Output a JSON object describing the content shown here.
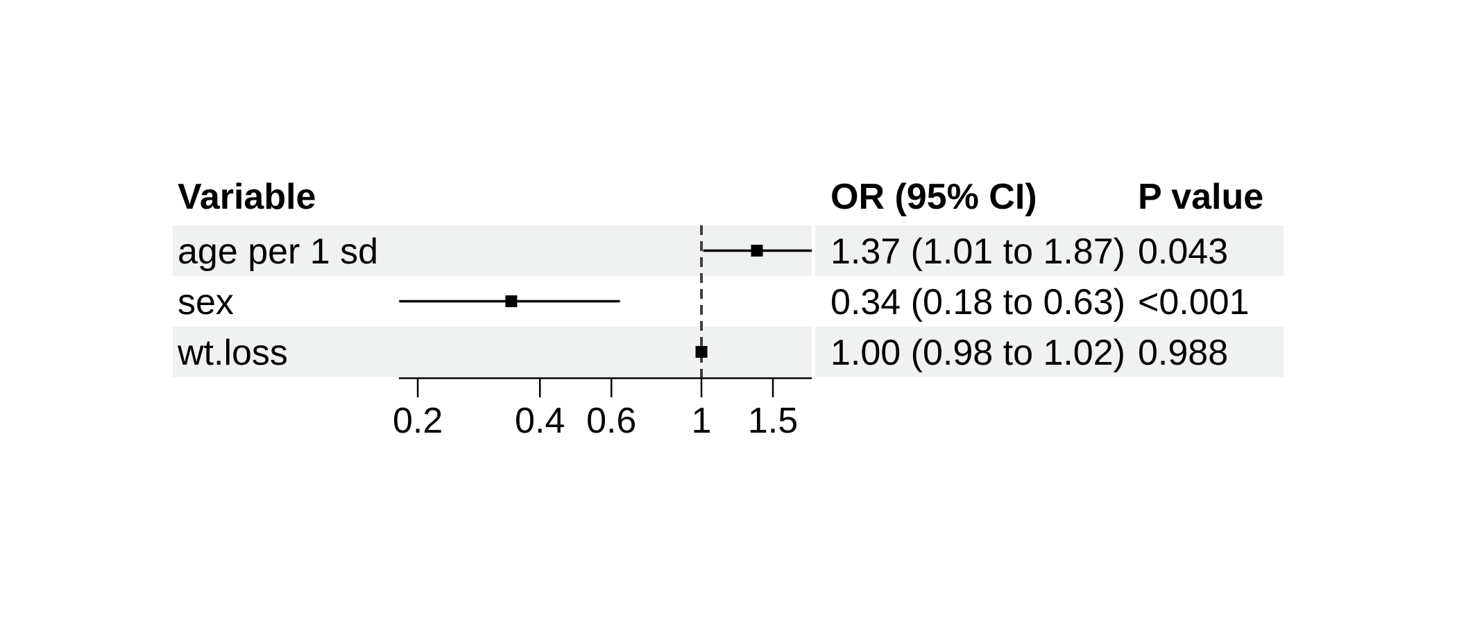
{
  "table": {
    "headers": {
      "variable": "Variable",
      "or_ci": "OR (95% CI)",
      "p_value": "P value"
    },
    "rows": [
      {
        "variable": "age per 1 sd",
        "or_ci": "1.37 (1.01 to 1.87)",
        "p_value": "0.043"
      },
      {
        "variable": "sex",
        "or_ci": "0.34 (0.18 to 0.63)",
        "p_value": "<0.001"
      },
      {
        "variable": "wt.loss",
        "or_ci": "1.00 (0.98 to 1.02)",
        "p_value": "0.988"
      }
    ]
  },
  "chart_data": {
    "type": "forest",
    "x_scale": "log10",
    "xlim": [
      0.18,
      1.87
    ],
    "reference_line": 1,
    "x_ticks": [
      {
        "value": 0.2,
        "label": "0.2"
      },
      {
        "value": 0.4,
        "label": "0.4"
      },
      {
        "value": 0.6,
        "label": "0.6"
      },
      {
        "value": 1,
        "label": "1"
      },
      {
        "value": 1.5,
        "label": "1.5"
      }
    ],
    "series": [
      {
        "name": "age per 1 sd",
        "estimate": 1.37,
        "ci_low": 1.01,
        "ci_high": 1.87,
        "p_value": "0.043"
      },
      {
        "name": "sex",
        "estimate": 0.34,
        "ci_low": 0.18,
        "ci_high": 0.63,
        "p_value": "<0.001"
      },
      {
        "name": "wt.loss",
        "estimate": 1.0,
        "ci_low": 0.98,
        "ci_high": 1.02,
        "p_value": "0.988"
      }
    ],
    "shaded_row_indices": [
      0,
      2
    ],
    "legend": "none",
    "grid": "off"
  },
  "colors": {
    "background": "#ffffff",
    "row_band": "#eff2f1",
    "ci_line": "#000000",
    "estimate_marker": "#000000",
    "reference_line": "#3f3f3f",
    "axis": "#000000",
    "text": "#000000"
  }
}
